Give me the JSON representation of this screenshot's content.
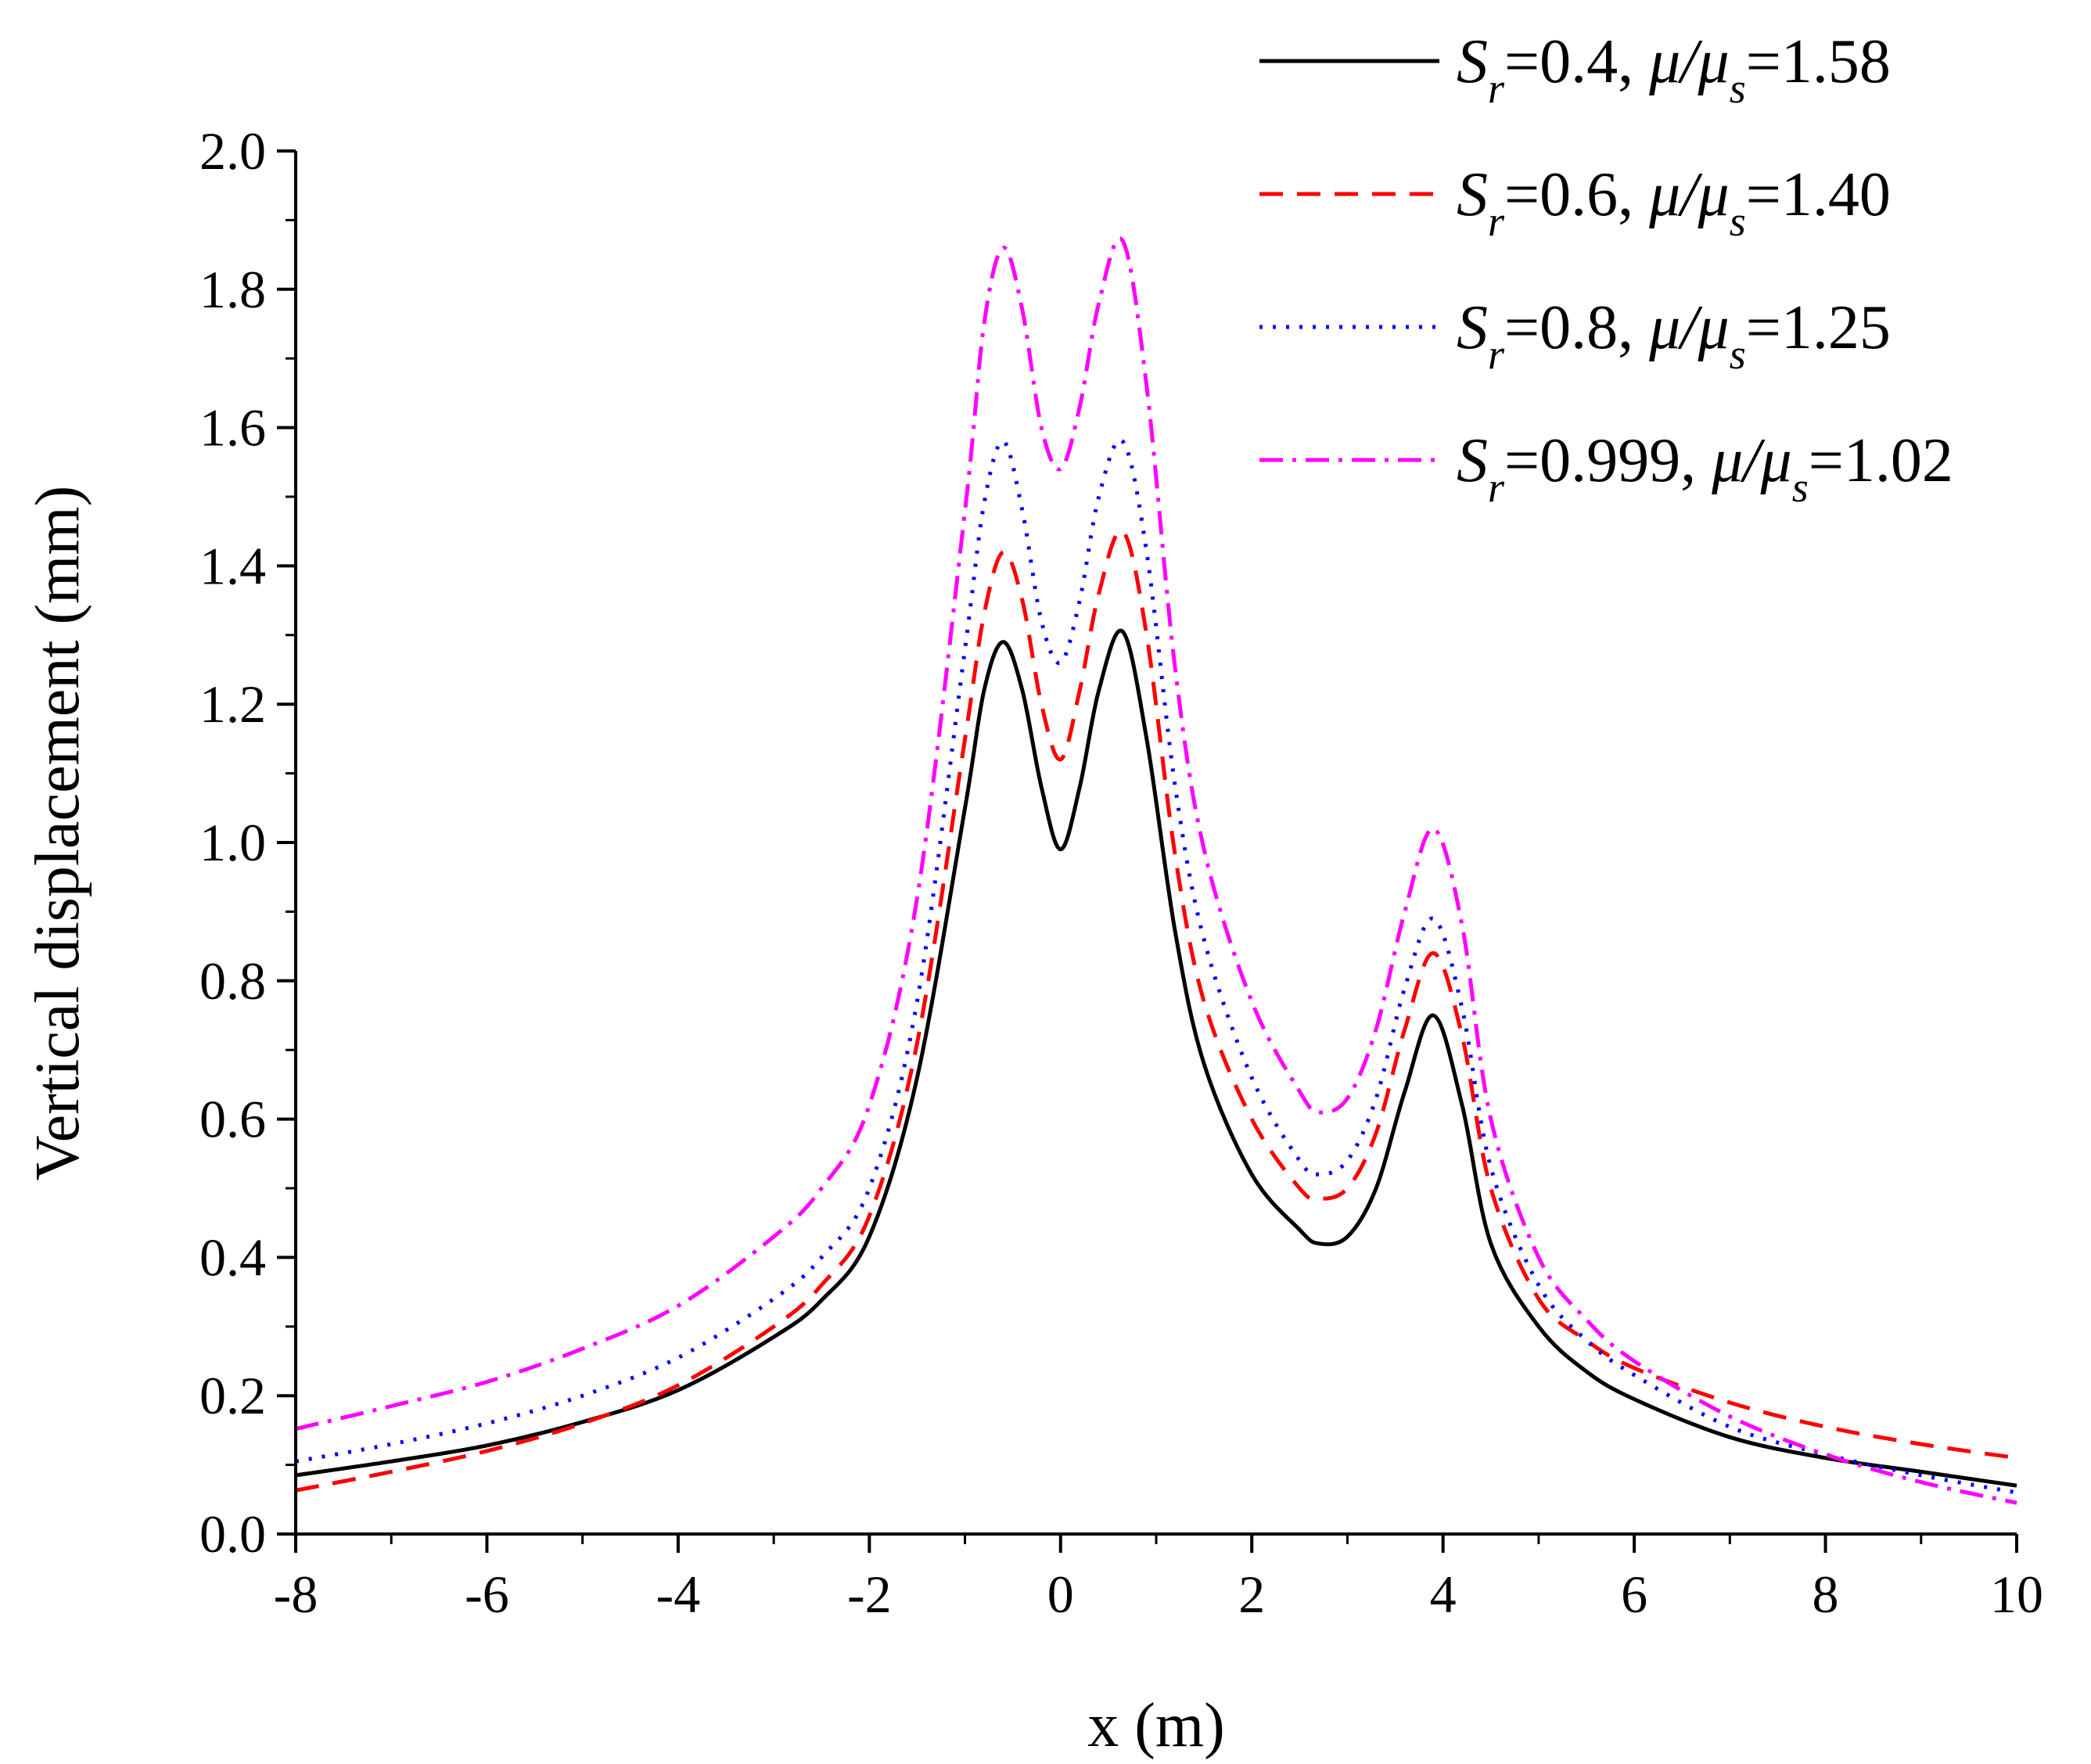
{
  "chart_data": {
    "type": "line",
    "title": "",
    "xlabel": "x (m)",
    "ylabel": "Vertical displacement (mm)",
    "xlim": [
      -8,
      10
    ],
    "ylim": [
      0.0,
      2.0
    ],
    "x_ticks": [
      -8,
      -6,
      -4,
      -2,
      0,
      2,
      4,
      6,
      8,
      10
    ],
    "x_tick_labels": [
      "-8",
      "-6",
      "-4",
      "-2",
      "0",
      "2",
      "4",
      "6",
      "8",
      "10"
    ],
    "y_ticks": [
      0.0,
      0.2,
      0.4,
      0.6,
      0.8,
      1.0,
      1.2,
      1.4,
      1.6,
      1.8,
      2.0
    ],
    "y_tick_labels": [
      "0.0",
      "0.2",
      "0.4",
      "0.6",
      "0.8",
      "1.0",
      "1.2",
      "1.4",
      "1.6",
      "1.8",
      "2.0"
    ],
    "legend_position": "top-right",
    "x": [
      -8,
      -7,
      -6,
      -5,
      -4,
      -3,
      -2.5,
      -2,
      -1.5,
      -1,
      -0.8,
      -0.6,
      -0.4,
      -0.2,
      0,
      0.2,
      0.4,
      0.65,
      0.9,
      1.2,
      1.5,
      2,
      2.5,
      2.7,
      3,
      3.3,
      3.6,
      3.9,
      4.2,
      4.5,
      5,
      5.5,
      6,
      7,
      8,
      9,
      10
    ],
    "series": [
      {
        "name_parts": [
          "S",
          "r",
          "=0.4, ",
          "μ/μ",
          "s",
          "=1.58"
        ],
        "color": "#000000",
        "dash": "",
        "values": [
          0.085,
          0.105,
          0.128,
          0.162,
          0.208,
          0.285,
          0.338,
          0.43,
          0.66,
          1.05,
          1.22,
          1.29,
          1.22,
          1.08,
          0.99,
          1.08,
          1.22,
          1.305,
          1.15,
          0.87,
          0.68,
          0.52,
          0.44,
          0.42,
          0.43,
          0.5,
          0.64,
          0.75,
          0.62,
          0.42,
          0.3,
          0.235,
          0.195,
          0.14,
          0.11,
          0.09,
          0.07
        ]
      },
      {
        "name_parts": [
          "S",
          "r",
          "=0.6, ",
          "μ/μ",
          "s",
          "=1.40"
        ],
        "color": "#ff0000",
        "dash": "30 18",
        "values": [
          0.063,
          0.09,
          0.12,
          0.16,
          0.215,
          0.3,
          0.36,
          0.46,
          0.71,
          1.15,
          1.33,
          1.42,
          1.35,
          1.2,
          1.12,
          1.22,
          1.36,
          1.45,
          1.3,
          0.98,
          0.77,
          0.6,
          0.5,
          0.485,
          0.5,
          0.58,
          0.73,
          0.84,
          0.72,
          0.5,
          0.34,
          0.28,
          0.24,
          0.19,
          0.155,
          0.13,
          0.11
        ]
      },
      {
        "name_parts": [
          "S",
          "r",
          "=0.8, ",
          "μ/μ",
          "s",
          "=1.25"
        ],
        "color": "#0000ff",
        "dash": "4 13",
        "values": [
          0.105,
          0.13,
          0.16,
          0.2,
          0.255,
          0.34,
          0.4,
          0.5,
          0.77,
          1.28,
          1.49,
          1.58,
          1.48,
          1.32,
          1.26,
          1.35,
          1.5,
          1.58,
          1.42,
          1.08,
          0.86,
          0.66,
          0.54,
          0.52,
          0.54,
          0.63,
          0.79,
          0.89,
          0.76,
          0.53,
          0.36,
          0.28,
          0.23,
          0.155,
          0.115,
          0.085,
          0.06
        ]
      },
      {
        "name_parts": [
          "S",
          "r",
          "=0.999, ",
          "μ/μ",
          "s",
          "=1.02"
        ],
        "color": "#ff00ff",
        "dash": "30 12 5 12",
        "values": [
          0.152,
          0.185,
          0.22,
          0.268,
          0.33,
          0.43,
          0.5,
          0.62,
          0.92,
          1.48,
          1.75,
          1.86,
          1.77,
          1.6,
          1.54,
          1.63,
          1.78,
          1.87,
          1.66,
          1.25,
          0.99,
          0.77,
          0.64,
          0.61,
          0.63,
          0.73,
          0.9,
          1.02,
          0.88,
          0.6,
          0.4,
          0.31,
          0.25,
          0.17,
          0.115,
          0.075,
          0.045
        ]
      }
    ]
  }
}
